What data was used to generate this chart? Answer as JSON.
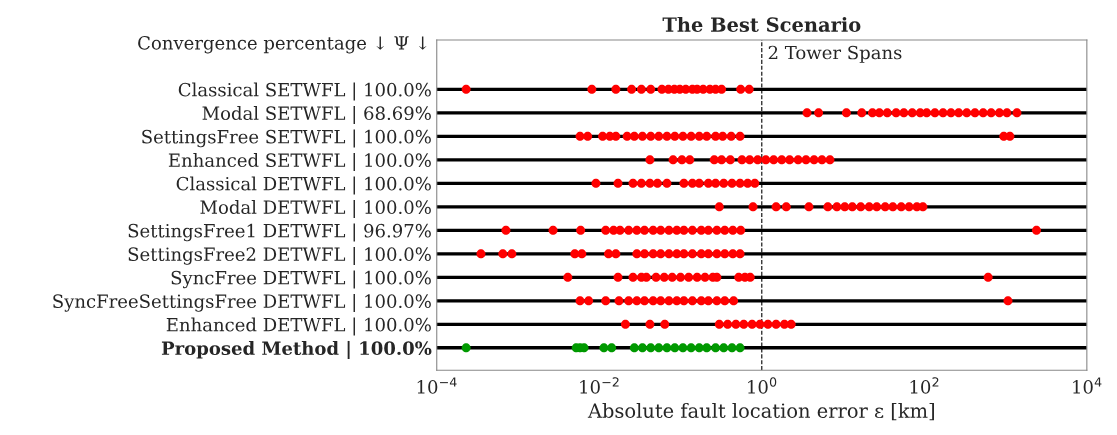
{
  "chart_data": {
    "type": "scatter",
    "orientation": "horizontal",
    "title": "The Best Scenario",
    "xlabel": "Absolute fault location error ε [km]",
    "annotations": [
      "Convergence percentage ↓ Ψ ↓"
    ],
    "categories": [
      "Classical SETWFL | 100.0%",
      "Modal SETWFL | 68.69%",
      "SettingsFree SETWFL | 100.0%",
      "Enhanced SETWFL | 100.0%",
      "Classical DETWFL | 100.0%",
      "Modal DETWFL | 100.0%",
      "SettingsFree1 DETWFL | 96.97%",
      "SettingsFree2 DETWFL | 100.0%",
      "SyncFree DETWFL | 100.0%",
      "SyncFreeSettingsFree DETWFL | 100.0%",
      "Enhanced DETWFL | 100.0%",
      "Proposed Method | 100.0%"
    ],
    "series": [
      {
        "color": "#ff0000",
        "x": [
          "Classical SETWFL | 100.0%",
          "Classical SETWFL | 100.0%",
          "Classical SETWFL | 100.0%",
          "Classical SETWFL | 100.0%",
          "Classical SETWFL | 100.0%",
          "Classical SETWFL | 100.0%",
          "Classical SETWFL | 100.0%",
          "Classical SETWFL | 100.0%",
          "Classical SETWFL | 100.0%",
          "Classical SETWFL | 100.0%",
          "Classical SETWFL | 100.0%",
          "Classical SETWFL | 100.0%",
          "Classical SETWFL | 100.0%",
          "Classical SETWFL | 100.0%",
          "Classical SETWFL | 100.0%",
          "Classical SETWFL | 100.0%",
          "Classical SETWFL | 100.0%",
          "Classical SETWFL | 100.0%",
          "Classical SETWFL | 100.0%"
        ],
        "values": [
          0.00023,
          0.0081,
          0.016,
          0.025,
          0.033,
          0.043,
          0.059,
          0.071,
          0.084,
          0.098,
          0.116,
          0.14,
          0.16,
          0.19,
          0.23,
          0.27,
          0.32,
          0.55,
          0.7
        ]
      },
      {
        "color": "#ff0000",
        "x": [
          "Modal SETWFL | 68.69%",
          "Modal SETWFL | 68.69%",
          "Modal SETWFL | 68.69%",
          "Modal SETWFL | 68.69%",
          "Modal SETWFL | 68.69%",
          "Modal SETWFL | 68.69%",
          "Modal SETWFL | 68.69%",
          "Modal SETWFL | 68.69%",
          "Modal SETWFL | 68.69%",
          "Modal SETWFL | 68.69%",
          "Modal SETWFL | 68.69%",
          "Modal SETWFL | 68.69%",
          "Modal SETWFL | 68.69%",
          "Modal SETWFL | 68.69%",
          "Modal SETWFL | 68.69%",
          "Modal SETWFL | 68.69%",
          "Modal SETWFL | 68.69%",
          "Modal SETWFL | 68.69%",
          "Modal SETWFL | 68.69%",
          "Modal SETWFL | 68.69%",
          "Modal SETWFL | 68.69%",
          "Modal SETWFL | 68.69%",
          "Modal SETWFL | 68.69%"
        ],
        "values": [
          3.6,
          5.0,
          11,
          17,
          23,
          28,
          35,
          45,
          56,
          71,
          89,
          107,
          135,
          170,
          213,
          265,
          333,
          420,
          530,
          665,
          840,
          1040,
          1380
        ]
      },
      {
        "color": "#ff0000",
        "x": [
          "SettingsFree SETWFL | 100.0%",
          "SettingsFree SETWFL | 100.0%",
          "SettingsFree SETWFL | 100.0%",
          "SettingsFree SETWFL | 100.0%",
          "SettingsFree SETWFL | 100.0%",
          "SettingsFree SETWFL | 100.0%",
          "SettingsFree SETWFL | 100.0%",
          "SettingsFree SETWFL | 100.0%",
          "SettingsFree SETWFL | 100.0%",
          "SettingsFree SETWFL | 100.0%",
          "SettingsFree SETWFL | 100.0%",
          "SettingsFree SETWFL | 100.0%",
          "SettingsFree SETWFL | 100.0%",
          "SettingsFree SETWFL | 100.0%",
          "SettingsFree SETWFL | 100.0%",
          "SettingsFree SETWFL | 100.0%",
          "SettingsFree SETWFL | 100.0%",
          "SettingsFree SETWFL | 100.0%",
          "SettingsFree SETWFL | 100.0%",
          "SettingsFree SETWFL | 100.0%",
          "SettingsFree SETWFL | 100.0%",
          "SettingsFree SETWFL | 100.0%"
        ],
        "values": [
          0.0058,
          0.0072,
          0.011,
          0.0135,
          0.016,
          0.022,
          0.027,
          0.034,
          0.043,
          0.054,
          0.068,
          0.085,
          0.107,
          0.135,
          0.17,
          0.21,
          0.27,
          0.33,
          0.42,
          0.54,
          950,
          1130
        ]
      },
      {
        "color": "#ff0000",
        "x": [
          "Enhanced SETWFL | 100.0%",
          "Enhanced SETWFL | 100.0%",
          "Enhanced SETWFL | 100.0%",
          "Enhanced SETWFL | 100.0%",
          "Enhanced SETWFL | 100.0%",
          "Enhanced SETWFL | 100.0%",
          "Enhanced SETWFL | 100.0%",
          "Enhanced SETWFL | 100.0%",
          "Enhanced SETWFL | 100.0%",
          "Enhanced SETWFL | 100.0%",
          "Enhanced SETWFL | 100.0%",
          "Enhanced SETWFL | 100.0%",
          "Enhanced SETWFL | 100.0%",
          "Enhanced SETWFL | 100.0%",
          "Enhanced SETWFL | 100.0%",
          "Enhanced SETWFL | 100.0%",
          "Enhanced SETWFL | 100.0%",
          "Enhanced SETWFL | 100.0%",
          "Enhanced SETWFL | 100.0%"
        ],
        "values": [
          0.042,
          0.081,
          0.104,
          0.13,
          0.26,
          0.32,
          0.41,
          0.57,
          0.71,
          0.89,
          1.12,
          1.4,
          1.76,
          2.2,
          2.8,
          3.5,
          4.4,
          5.5,
          6.9
        ]
      },
      {
        "color": "#ff0000",
        "x": [
          "Classical DETWFL | 100.0%",
          "Classical DETWFL | 100.0%",
          "Classical DETWFL | 100.0%",
          "Classical DETWFL | 100.0%",
          "Classical DETWFL | 100.0%",
          "Classical DETWFL | 100.0%",
          "Classical DETWFL | 100.0%",
          "Classical DETWFL | 100.0%",
          "Classical DETWFL | 100.0%",
          "Classical DETWFL | 100.0%",
          "Classical DETWFL | 100.0%",
          "Classical DETWFL | 100.0%",
          "Classical DETWFL | 100.0%",
          "Classical DETWFL | 100.0%",
          "Classical DETWFL | 100.0%",
          "Classical DETWFL | 100.0%",
          "Classical DETWFL | 100.0%"
        ],
        "values": [
          0.0091,
          0.017,
          0.026,
          0.033,
          0.042,
          0.052,
          0.068,
          0.11,
          0.14,
          0.17,
          0.22,
          0.27,
          0.34,
          0.43,
          0.54,
          0.67,
          0.82
        ]
      },
      {
        "color": "#ff0000",
        "x": [
          "Modal DETWFL | 100.0%",
          "Modal DETWFL | 100.0%",
          "Modal DETWFL | 100.0%",
          "Modal DETWFL | 100.0%",
          "Modal DETWFL | 100.0%",
          "Modal DETWFL | 100.0%",
          "Modal DETWFL | 100.0%",
          "Modal DETWFL | 100.0%",
          "Modal DETWFL | 100.0%",
          "Modal DETWFL | 100.0%",
          "Modal DETWFL | 100.0%",
          "Modal DETWFL | 100.0%",
          "Modal DETWFL | 100.0%",
          "Modal DETWFL | 100.0%",
          "Modal DETWFL | 100.0%",
          "Modal DETWFL | 100.0%",
          "Modal DETWFL | 100.0%",
          "Modal DETWFL | 100.0%"
        ],
        "values": [
          0.3,
          0.78,
          1.5,
          2.0,
          3.8,
          6.5,
          8.4,
          10.5,
          13,
          16.5,
          21,
          26,
          33,
          41,
          52,
          65,
          81,
          96
        ]
      },
      {
        "color": "#ff0000",
        "x": [
          "SettingsFree1 DETWFL | 96.97%",
          "SettingsFree1 DETWFL | 96.97%",
          "SettingsFree1 DETWFL | 96.97%",
          "SettingsFree1 DETWFL | 96.97%",
          "SettingsFree1 DETWFL | 96.97%",
          "SettingsFree1 DETWFL | 96.97%",
          "SettingsFree1 DETWFL | 96.97%",
          "SettingsFree1 DETWFL | 96.97%",
          "SettingsFree1 DETWFL | 96.97%",
          "SettingsFree1 DETWFL | 96.97%",
          "SettingsFree1 DETWFL | 96.97%",
          "SettingsFree1 DETWFL | 96.97%",
          "SettingsFree1 DETWFL | 96.97%",
          "SettingsFree1 DETWFL | 96.97%",
          "SettingsFree1 DETWFL | 96.97%",
          "SettingsFree1 DETWFL | 96.97%",
          "SettingsFree1 DETWFL | 96.97%",
          "SettingsFree1 DETWFL | 96.97%",
          "SettingsFree1 DETWFL | 96.97%",
          "SettingsFree1 DETWFL | 96.97%",
          "SettingsFree1 DETWFL | 96.97%",
          "SettingsFree1 DETWFL | 96.97%"
        ],
        "values": [
          0.00071,
          0.0027,
          0.0059,
          0.012,
          0.015,
          0.018,
          0.023,
          0.029,
          0.036,
          0.046,
          0.057,
          0.072,
          0.09,
          0.11,
          0.14,
          0.18,
          0.22,
          0.28,
          0.35,
          0.44,
          0.55,
          2400
        ]
      },
      {
        "color": "#ff0000",
        "x": [
          "SettingsFree2 DETWFL | 100.0%",
          "SettingsFree2 DETWFL | 100.0%",
          "SettingsFree2 DETWFL | 100.0%",
          "SettingsFree2 DETWFL | 100.0%",
          "SettingsFree2 DETWFL | 100.0%",
          "SettingsFree2 DETWFL | 100.0%",
          "SettingsFree2 DETWFL | 100.0%",
          "SettingsFree2 DETWFL | 100.0%",
          "SettingsFree2 DETWFL | 100.0%",
          "SettingsFree2 DETWFL | 100.0%",
          "SettingsFree2 DETWFL | 100.0%",
          "SettingsFree2 DETWFL | 100.0%",
          "SettingsFree2 DETWFL | 100.0%",
          "SettingsFree2 DETWFL | 100.0%",
          "SettingsFree2 DETWFL | 100.0%",
          "SettingsFree2 DETWFL | 100.0%",
          "SettingsFree2 DETWFL | 100.0%",
          "SettingsFree2 DETWFL | 100.0%",
          "SettingsFree2 DETWFL | 100.0%",
          "SettingsFree2 DETWFL | 100.0%",
          "SettingsFree2 DETWFL | 100.0%"
        ],
        "values": [
          0.00035,
          0.00065,
          0.00084,
          0.005,
          0.0061,
          0.013,
          0.016,
          0.029,
          0.036,
          0.046,
          0.057,
          0.072,
          0.09,
          0.11,
          0.14,
          0.18,
          0.22,
          0.28,
          0.35,
          0.44,
          0.54
        ]
      },
      {
        "color": "#ff0000",
        "x": [
          "SyncFree DETWFL | 100.0%",
          "SyncFree DETWFL | 100.0%",
          "SyncFree DETWFL | 100.0%",
          "SyncFree DETWFL | 100.0%",
          "SyncFree DETWFL | 100.0%",
          "SyncFree DETWFL | 100.0%",
          "SyncFree DETWFL | 100.0%",
          "SyncFree DETWFL | 100.0%",
          "SyncFree DETWFL | 100.0%",
          "SyncFree DETWFL | 100.0%",
          "SyncFree DETWFL | 100.0%",
          "SyncFree DETWFL | 100.0%",
          "SyncFree DETWFL | 100.0%",
          "SyncFree DETWFL | 100.0%",
          "SyncFree DETWFL | 100.0%",
          "SyncFree DETWFL | 100.0%",
          "SyncFree DETWFL | 100.0%",
          "SyncFree DETWFL | 100.0%"
        ],
        "values": [
          0.0041,
          0.017,
          0.026,
          0.033,
          0.038,
          0.05,
          0.063,
          0.079,
          0.1,
          0.126,
          0.16,
          0.2,
          0.25,
          0.28,
          0.52,
          0.62,
          0.72,
          610
        ]
      },
      {
        "color": "#ff0000",
        "x": [
          "SyncFreeSettingsFree DETWFL | 100.0%",
          "SyncFreeSettingsFree DETWFL | 100.0%",
          "SyncFreeSettingsFree DETWFL | 100.0%",
          "SyncFreeSettingsFree DETWFL | 100.0%",
          "SyncFreeSettingsFree DETWFL | 100.0%",
          "SyncFreeSettingsFree DETWFL | 100.0%",
          "SyncFreeSettingsFree DETWFL | 100.0%",
          "SyncFreeSettingsFree DETWFL | 100.0%",
          "SyncFreeSettingsFree DETWFL | 100.0%",
          "SyncFreeSettingsFree DETWFL | 100.0%",
          "SyncFreeSettingsFree DETWFL | 100.0%",
          "SyncFreeSettingsFree DETWFL | 100.0%",
          "SyncFreeSettingsFree DETWFL | 100.0%",
          "SyncFreeSettingsFree DETWFL | 100.0%",
          "SyncFreeSettingsFree DETWFL | 100.0%",
          "SyncFreeSettingsFree DETWFL | 100.0%",
          "SyncFreeSettingsFree DETWFL | 100.0%",
          "SyncFreeSettingsFree DETWFL | 100.0%",
          "SyncFreeSettingsFree DETWFL | 100.0%"
        ],
        "values": [
          0.0058,
          0.0074,
          0.012,
          0.0175,
          0.023,
          0.029,
          0.036,
          0.046,
          0.057,
          0.072,
          0.09,
          0.11,
          0.14,
          0.18,
          0.22,
          0.28,
          0.35,
          0.45,
          1070
        ]
      },
      {
        "color": "#ff0000",
        "x": [
          "Enhanced DETWFL | 100.0%",
          "Enhanced DETWFL | 100.0%",
          "Enhanced DETWFL | 100.0%",
          "Enhanced DETWFL | 100.0%",
          "Enhanced DETWFL | 100.0%",
          "Enhanced DETWFL | 100.0%",
          "Enhanced DETWFL | 100.0%",
          "Enhanced DETWFL | 100.0%",
          "Enhanced DETWFL | 100.0%",
          "Enhanced DETWFL | 100.0%",
          "Enhanced DETWFL | 100.0%",
          "Enhanced DETWFL | 100.0%",
          "Enhanced DETWFL | 100.0%"
        ],
        "values": [
          0.021,
          0.042,
          0.064,
          0.3,
          0.38,
          0.48,
          0.6,
          0.76,
          0.95,
          1.19,
          1.5,
          1.9,
          2.3
        ]
      },
      {
        "color": "#009900",
        "x": [
          "Proposed Method | 100.0%",
          "Proposed Method | 100.0%",
          "Proposed Method | 100.0%",
          "Proposed Method | 100.0%",
          "Proposed Method | 100.0%",
          "Proposed Method | 100.0%",
          "Proposed Method | 100.0%",
          "Proposed Method | 100.0%",
          "Proposed Method | 100.0%",
          "Proposed Method | 100.0%",
          "Proposed Method | 100.0%",
          "Proposed Method | 100.0%",
          "Proposed Method | 100.0%",
          "Proposed Method | 100.0%",
          "Proposed Method | 100.0%",
          "Proposed Method | 100.0%",
          "Proposed Method | 100.0%",
          "Proposed Method | 100.0%",
          "Proposed Method | 100.0%",
          "Proposed Method | 100.0%"
        ],
        "values": [
          0.00023,
          0.0052,
          0.0058,
          0.0065,
          0.0114,
          0.0142,
          0.027,
          0.034,
          0.043,
          0.054,
          0.068,
          0.085,
          0.107,
          0.135,
          0.17,
          0.21,
          0.27,
          0.34,
          0.43,
          0.54
        ]
      }
    ],
    "log": "x",
    "xlim": [
      0.0001,
      10000
    ],
    "xticks": [
      {
        "value": 0.0001,
        "label": "10$^{−4}$"
      },
      {
        "value": 0.01,
        "label": "10$^{−2}$"
      },
      {
        "value": 1,
        "label": "10$^{0}$"
      },
      {
        "value": 100,
        "label": "10$^{2}$"
      },
      {
        "value": 10000,
        "label": "10$^{4}$"
      }
    ],
    "ref_lines": [
      {
        "axis": "x",
        "value": 1,
        "label": "2 Tower Spans",
        "color": "#000000",
        "line_style": "dashed"
      }
    ],
    "grid": "y",
    "marker": "circle"
  }
}
